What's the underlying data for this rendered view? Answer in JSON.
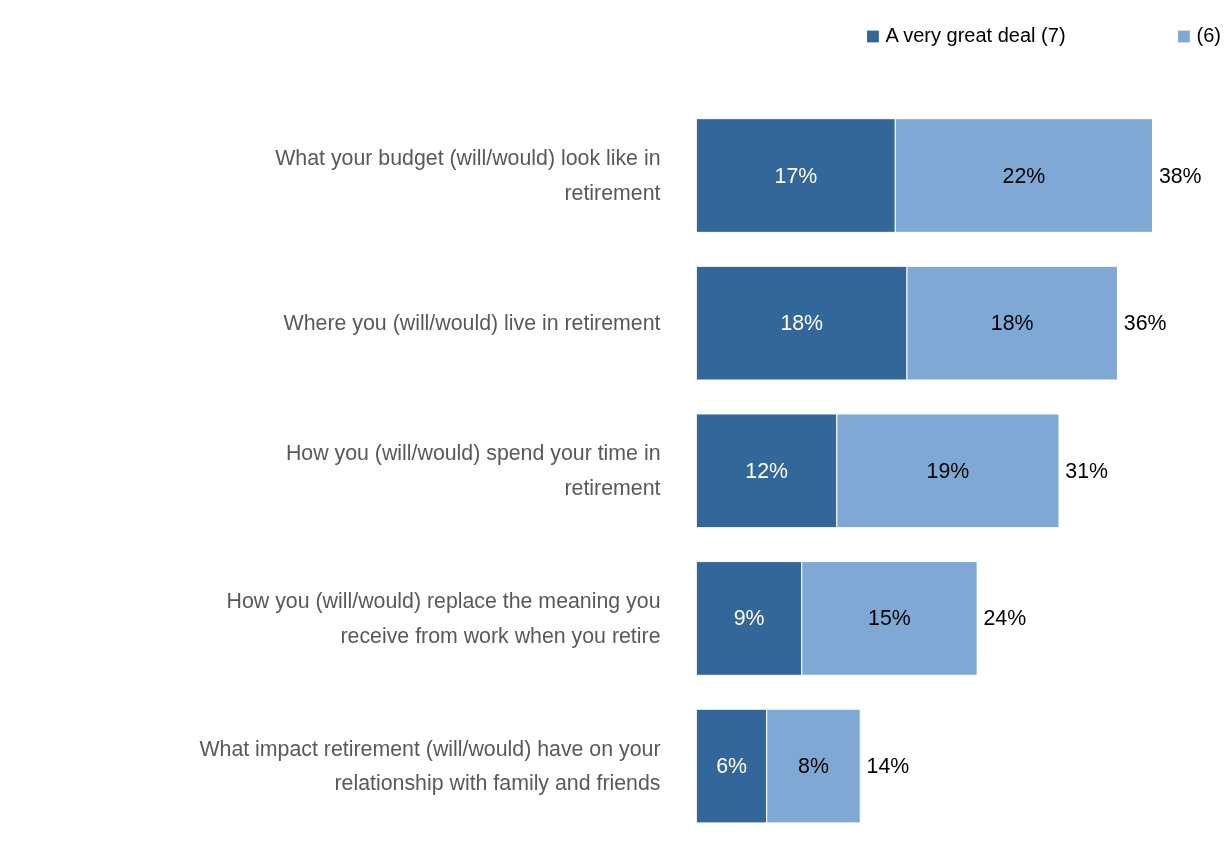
{
  "chart_data": {
    "type": "bar",
    "orientation": "horizontal",
    "stacked": true,
    "legend": "top right",
    "grid": false,
    "tick_labels": "y",
    "categories": [
      "What your budget (will/would) look like in retirement",
      "Where you (will/would) live in retirement",
      "How you (will/would) spend your time in retirement",
      "How you (will/would) replace the meaning you receive from work when you retire",
      "What impact retirement (will/would) have on your relationship with family and friends"
    ],
    "series": [
      {
        "name": "A very great deal (7)",
        "color": "#336699",
        "values": [
          17,
          18,
          12,
          9,
          6
        ],
        "value_labels": [
          "17%",
          "18%",
          "12%",
          "9%",
          "6%"
        ]
      },
      {
        "name": "(6)",
        "color": "#7fa9d4",
        "values": [
          22,
          18,
          19,
          15,
          8
        ],
        "value_labels": [
          "22%",
          "18%",
          "19%",
          "15%",
          "8%"
        ]
      }
    ],
    "totals": [
      "38%",
      "36%",
      "31%",
      "24%",
      "14%"
    ]
  }
}
